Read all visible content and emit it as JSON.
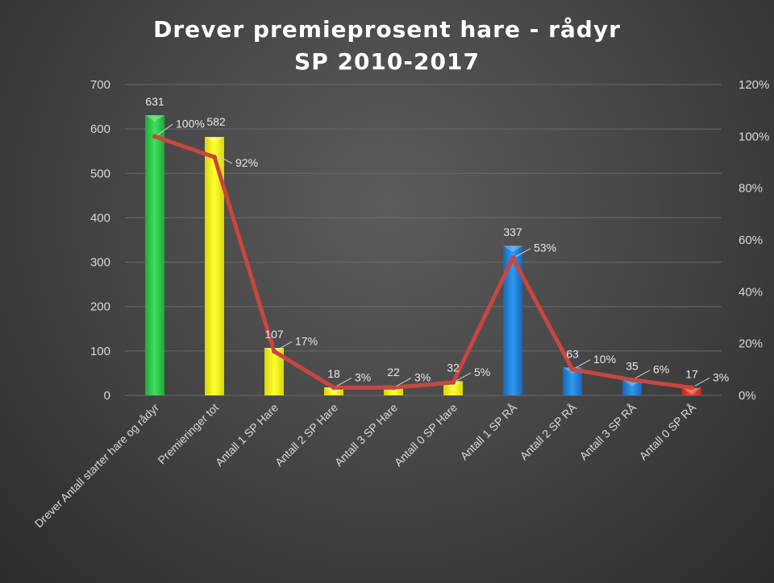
{
  "chart_data": {
    "type": "bar",
    "title": "Drever premieprosent  hare  - rådyr",
    "subtitle": "SP 2010-2017",
    "categories": [
      "Drever Antall starter hare og rådyr",
      "Premieringer tot",
      "Antall 1 SP Hare",
      "Antall 2 SP Hare",
      "Antall 3 SP Hare",
      "Antall 0 SP Hare",
      "Antall 1 SP RÅ",
      "Antall 2 SP RÅ",
      "Antall 3 SP RÅ",
      "Antall 0  SP RÅ"
    ],
    "series": [
      {
        "type": "bar",
        "values": [
          631,
          582,
          107,
          18,
          22,
          32,
          337,
          63,
          35,
          17
        ],
        "value_labels": [
          "631",
          "582",
          "107",
          "18",
          "22",
          "32",
          "337",
          "63",
          "35",
          "17"
        ],
        "colors": [
          "#2fcf4a",
          "#f4f20e",
          "#f4f20e",
          "#f4f20e",
          "#f4f20e",
          "#f4f20e",
          "#1f86e0",
          "#1f86e0",
          "#1f86e0",
          "#e23a2c"
        ]
      },
      {
        "type": "line",
        "axis": "secondary",
        "values": [
          100,
          92,
          17,
          3,
          3,
          5,
          53,
          10,
          6,
          3
        ],
        "value_labels": [
          "100%",
          "92%",
          "17%",
          "3%",
          "3%",
          "5%",
          "53%",
          "10%",
          "6%",
          "3%"
        ],
        "color": "#c9463f"
      }
    ],
    "y_axis": {
      "ylim": [
        0,
        700
      ],
      "ticks": [
        0,
        100,
        200,
        300,
        400,
        500,
        600,
        700
      ],
      "tick_labels": [
        "0",
        "100",
        "200",
        "300",
        "400",
        "500",
        "600",
        "700"
      ]
    },
    "y2_axis": {
      "ylim": [
        0,
        120
      ],
      "ticks": [
        0,
        20,
        40,
        60,
        80,
        100,
        120
      ],
      "tick_labels": [
        "0%",
        "20%",
        "40%",
        "60%",
        "80%",
        "100%",
        "120%"
      ]
    },
    "grid": true,
    "legend": "none"
  }
}
